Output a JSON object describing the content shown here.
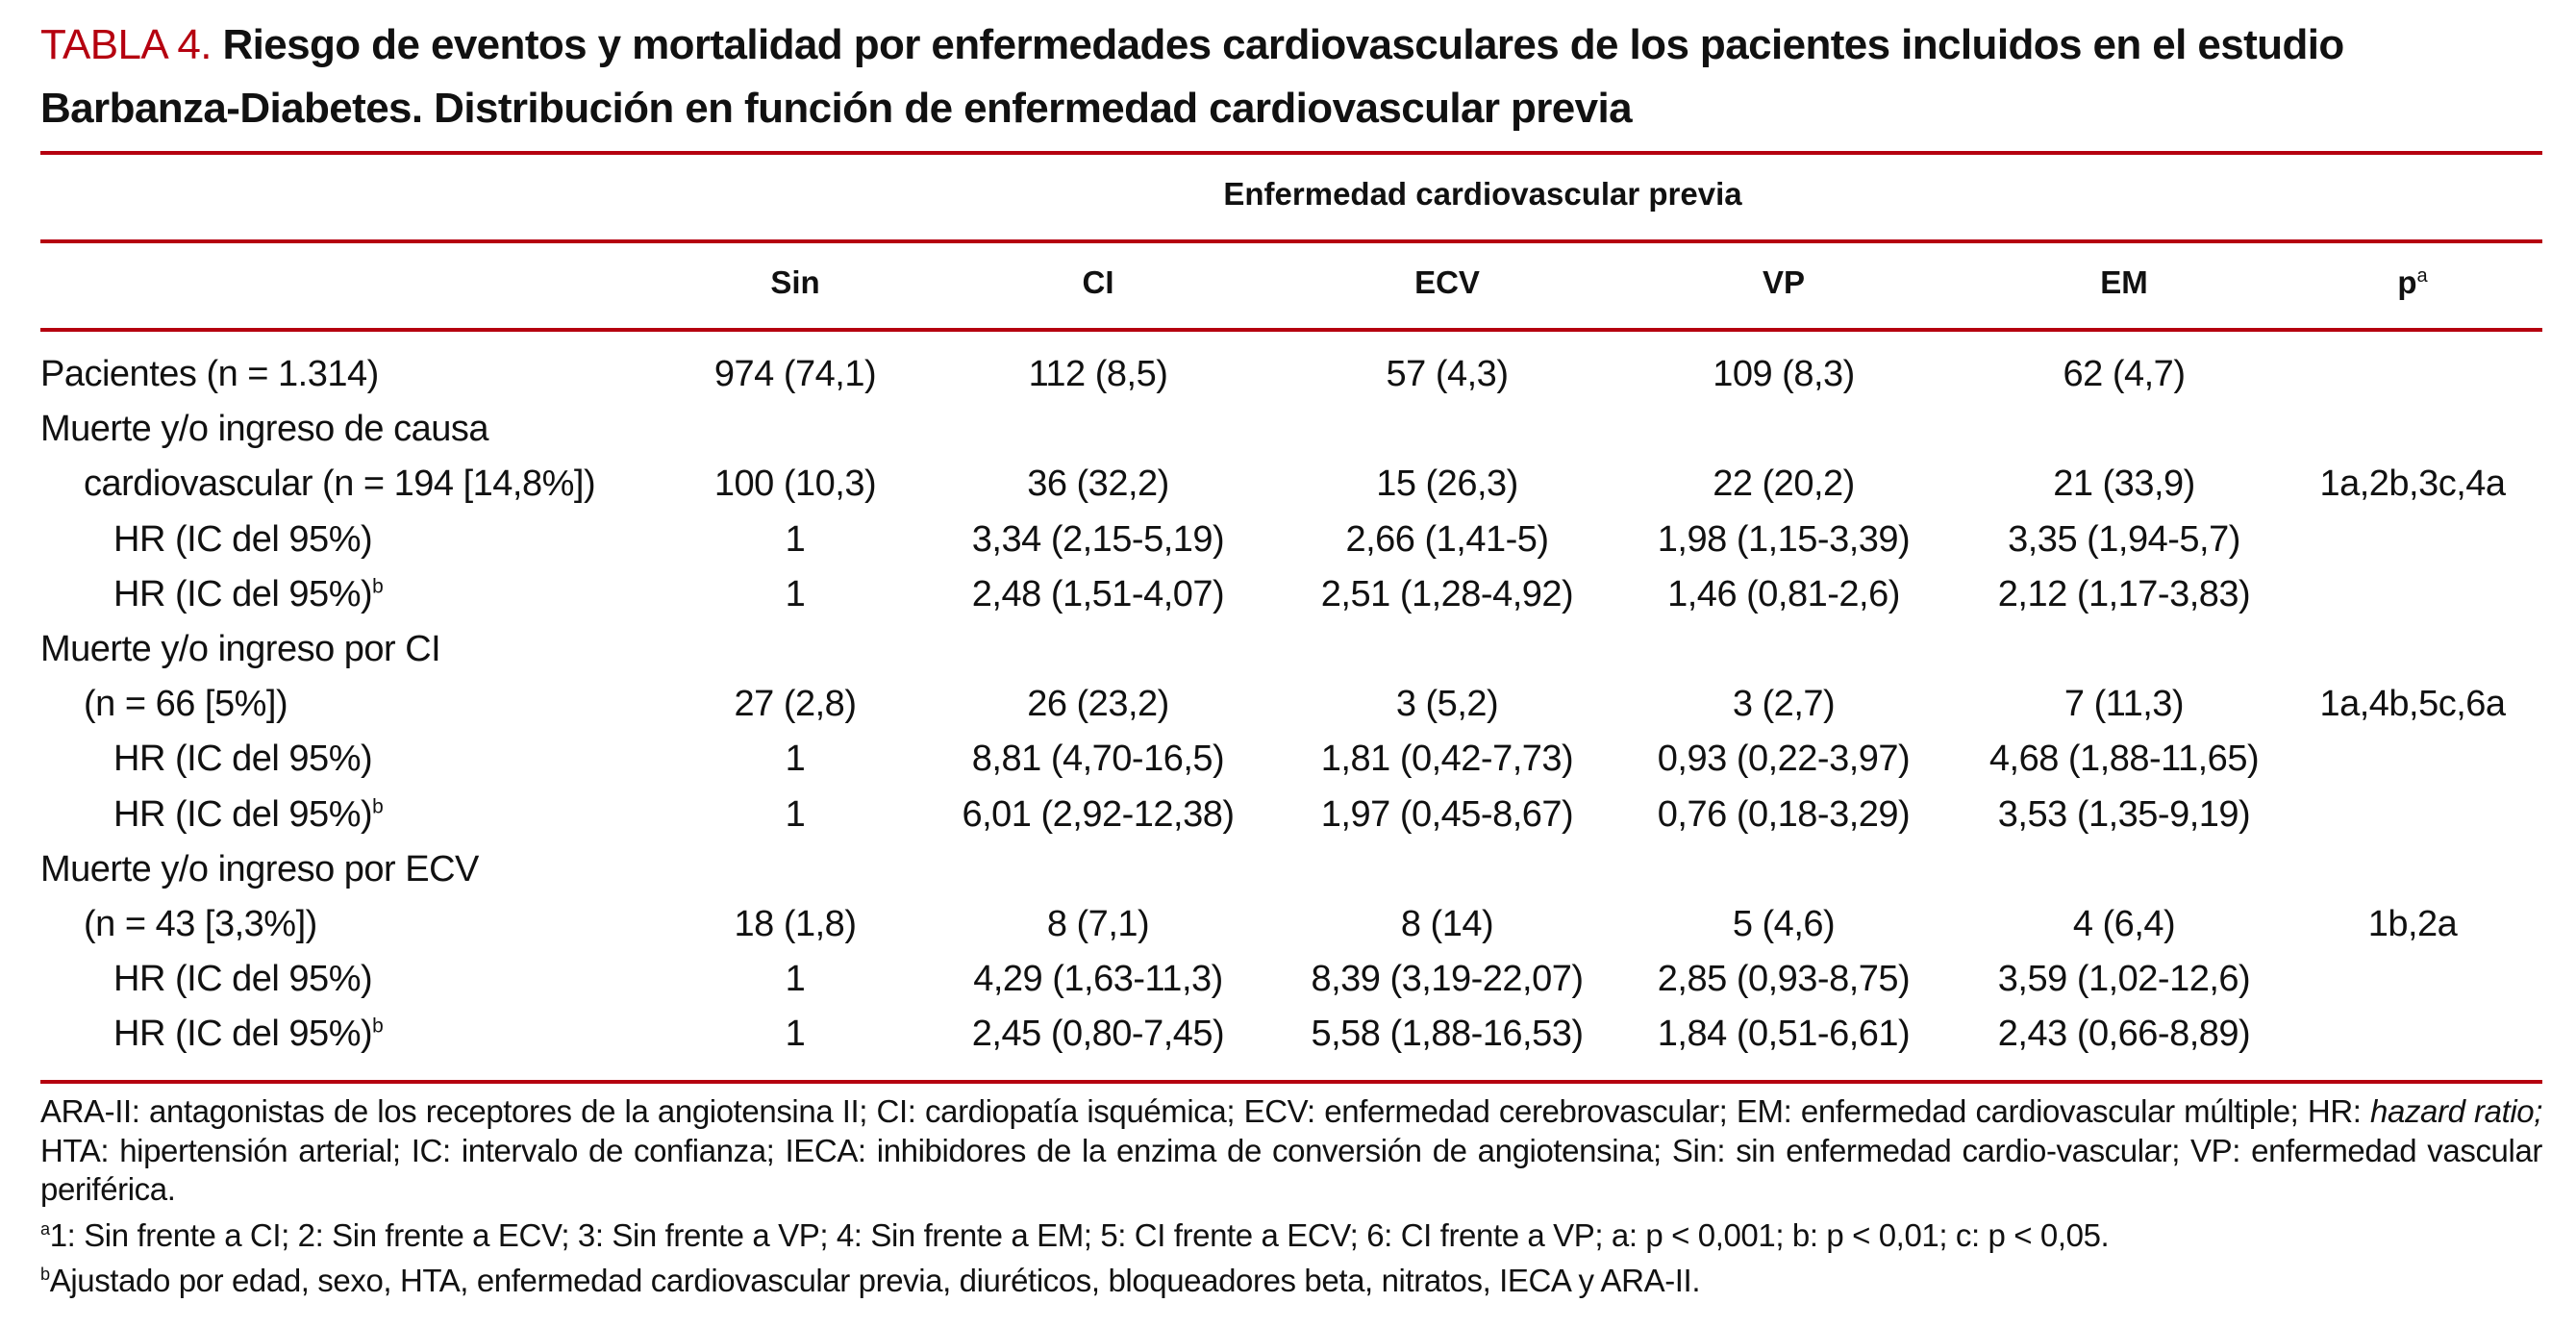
{
  "title": {
    "label": "TABLA 4.",
    "text": "Riesgo de eventos y mortalidad por enfermedades cardiovasculares de los pacientes incluidos en el estudio Barbanza-Diabetes. Distribución en función de enfermedad cardiovascular previa"
  },
  "header": {
    "group": "Enfermedad cardiovascular previa",
    "columns": [
      "Sin",
      "CI",
      "ECV",
      "VP",
      "EM",
      "p"
    ],
    "p_sup": "a"
  },
  "rows": [
    {
      "label": "Pacientes (n = 1.314)",
      "sup": "",
      "indent": 0,
      "values": [
        "974 (74,1)",
        "112 (8,5)",
        "57 (4,3)",
        "109 (8,3)",
        "62 (4,7)",
        ""
      ]
    },
    {
      "label": "Muerte y/o ingreso de causa",
      "sup": "",
      "indent": 0,
      "values": [
        "",
        "",
        "",
        "",
        "",
        ""
      ]
    },
    {
      "label": "cardiovascular (n = 194 [14,8%])",
      "sup": "",
      "indent": 1,
      "values": [
        "100 (10,3)",
        "36 (32,2)",
        "15 (26,3)",
        "22 (20,2)",
        "21 (33,9)",
        "1a,2b,3c,4a"
      ]
    },
    {
      "label": "HR (IC del 95%)",
      "sup": "",
      "indent": 2,
      "values": [
        "1",
        "3,34 (2,15-5,19)",
        "2,66 (1,41-5)",
        "1,98 (1,15-3,39)",
        "3,35 (1,94-5,7)",
        ""
      ]
    },
    {
      "label": "HR (IC del 95%)",
      "sup": "b",
      "indent": 2,
      "values": [
        "1",
        "2,48 (1,51-4,07)",
        "2,51 (1,28-4,92)",
        "1,46 (0,81-2,6)",
        "2,12 (1,17-3,83)",
        ""
      ]
    },
    {
      "label": "Muerte y/o ingreso por CI",
      "sup": "",
      "indent": 0,
      "values": [
        "",
        "",
        "",
        "",
        "",
        ""
      ]
    },
    {
      "label": "(n = 66 [5%])",
      "sup": "",
      "indent": 1,
      "values": [
        "27 (2,8)",
        "26 (23,2)",
        "3 (5,2)",
        "3 (2,7)",
        "7 (11,3)",
        "1a,4b,5c,6a"
      ]
    },
    {
      "label": "HR (IC del 95%)",
      "sup": "",
      "indent": 2,
      "values": [
        "1",
        "8,81 (4,70-16,5)",
        "1,81 (0,42-7,73)",
        "0,93 (0,22-3,97)",
        "4,68 (1,88-11,65)",
        ""
      ]
    },
    {
      "label": "HR (IC del 95%)",
      "sup": "b",
      "indent": 2,
      "values": [
        "1",
        "6,01 (2,92-12,38)",
        "1,97 (0,45-8,67)",
        "0,76 (0,18-3,29)",
        "3,53 (1,35-9,19)",
        ""
      ]
    },
    {
      "label": "Muerte y/o ingreso por ECV",
      "sup": "",
      "indent": 0,
      "values": [
        "",
        "",
        "",
        "",
        "",
        ""
      ]
    },
    {
      "label": "(n = 43 [3,3%])",
      "sup": "",
      "indent": 1,
      "values": [
        "18 (1,8)",
        "8 (7,1)",
        "8 (14)",
        "5 (4,6)",
        "4 (6,4)",
        "1b,2a"
      ]
    },
    {
      "label": "HR (IC del 95%)",
      "sup": "",
      "indent": 2,
      "values": [
        "1",
        "4,29 (1,63-11,3)",
        "8,39 (3,19-22,07)",
        "2,85 (0,93-8,75)",
        "3,59 (1,02-12,6)",
        ""
      ]
    },
    {
      "label": "HR (IC del 95%)",
      "sup": "b",
      "indent": 2,
      "values": [
        "1",
        "2,45 (0,80-7,45)",
        "5,58 (1,88-16,53)",
        "1,84 (0,51-6,61)",
        "2,43 (0,66-8,89)",
        ""
      ]
    }
  ],
  "footnotes": {
    "abbrev_pre": "ARA-II: antagonistas de los receptores de la angiotensina II; CI: cardiopatía isquémica; ECV: enfermedad cerebrovascular; EM: enfermedad cardiovascular múltiple; HR: ",
    "abbrev_italic": "hazard ratio;",
    "abbrev_post": " HTA: hipertensión arterial; IC: intervalo de confianza; IECA: inhibidores de la enzima de conversión de angiotensina; Sin: sin enfermedad cardio-vascular; VP: enfermedad vascular periférica.",
    "a_mark": "a",
    "a_text": "1: Sin frente a CI; 2: Sin frente a ECV; 3: Sin frente a VP; 4: Sin frente a EM; 5: CI frente a ECV; 6: CI frente a VP; a: p < 0,001; b: p < 0,01; c: p < 0,05.",
    "b_mark": "b",
    "b_text": "Ajustado por edad, sexo, HTA, enfermedad cardiovascular previa, diuréticos, bloqueadores beta, nitratos, IECA y ARA-II."
  },
  "colors": {
    "accent": "#b5000f",
    "text": "#111111"
  }
}
